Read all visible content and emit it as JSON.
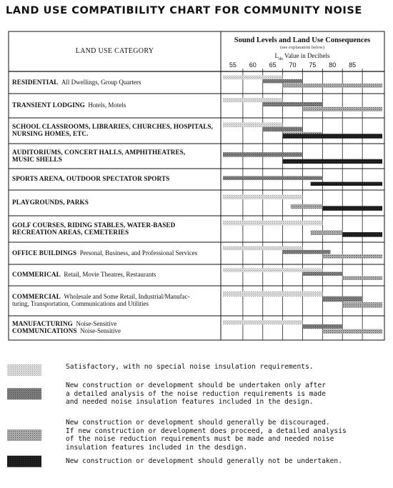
{
  "title": "LAND USE COMPATIBILITY CHART FOR COMMUNITY NOISE",
  "header": {
    "category_label": "LAND USE CATEGORY",
    "sound_title": "Sound Levels and Land Use Consequences",
    "sound_note": "(see explanation below)",
    "ldn_main": "L",
    "ldn_sub": "dn",
    "ldn_rest": " Value in Decibels"
  },
  "chart_data": {
    "type": "table",
    "x_unit": "Ldn Value in Decibels",
    "xlim": [
      50,
      90
    ],
    "ticks": [
      55,
      60,
      65,
      70,
      75,
      80,
      85
    ],
    "zones": [
      {
        "key": "satisfactory",
        "color": "#d6d6d6"
      },
      {
        "key": "analysis",
        "color": "#777777"
      },
      {
        "key": "discouraged",
        "color": "#a8a8a8"
      },
      {
        "key": "not_undertaken",
        "color": "#1c1c1c"
      }
    ],
    "rows": [
      {
        "name": "RESIDENTIAL",
        "desc": "All Dwellings, Group Quarters",
        "bands": [
          {
            "zone": "satisfactory",
            "from": 50,
            "to": 65
          },
          {
            "zone": "analysis",
            "from": 60,
            "to": 70
          },
          {
            "zone": "discouraged",
            "from": 65,
            "to": 90
          }
        ]
      },
      {
        "name": "TRANSIENT LODGING",
        "desc": "Hotels, Motels",
        "bands": [
          {
            "zone": "satisfactory",
            "from": 50,
            "to": 65
          },
          {
            "zone": "analysis",
            "from": 60,
            "to": 75
          },
          {
            "zone": "discouraged",
            "from": 70,
            "to": 80
          },
          {
            "zone": "discouraged",
            "from": 75,
            "to": 90
          }
        ]
      },
      {
        "name": "SCHOOL CLASSROOMS, LIBRARIES, CHURCHES, HOSPITALS, NURSING HOMES, ETC.",
        "desc": "",
        "bands": [
          {
            "zone": "satisfactory",
            "from": 50,
            "to": 65
          },
          {
            "zone": "analysis",
            "from": 60,
            "to": 70
          },
          {
            "zone": "discouraged",
            "from": 65,
            "to": 75
          },
          {
            "zone": "not_undertaken",
            "from": 65,
            "to": 90
          }
        ]
      },
      {
        "name": "AUDITORIUMS, CONCERT HALLS, AMPHITHEATRES, MUSIC SHELLS",
        "desc": "",
        "bands": [
          {
            "zone": "analysis",
            "from": 50,
            "to": 70
          },
          {
            "zone": "not_undertaken",
            "from": 65,
            "to": 90
          }
        ]
      },
      {
        "name": "SPORTS ARENA, OUTDOOR SPECTATOR SPORTS",
        "desc": "",
        "bands": [
          {
            "zone": "analysis",
            "from": 50,
            "to": 75
          },
          {
            "zone": "not_undertaken",
            "from": 72,
            "to": 90
          }
        ]
      },
      {
        "name": "PLAYGROUNDS, PARKS",
        "desc": "",
        "bands": [
          {
            "zone": "satisfactory",
            "from": 50,
            "to": 70
          },
          {
            "zone": "discouraged",
            "from": 67,
            "to": 75
          },
          {
            "zone": "not_undertaken",
            "from": 75,
            "to": 90
          }
        ]
      },
      {
        "name": "GOLF COURSES, RIDING STABLES, WATER-BASED RECREATION AREAS, CEMETERIES",
        "desc": "",
        "bands": [
          {
            "zone": "satisfactory",
            "from": 50,
            "to": 75
          },
          {
            "zone": "discouraged",
            "from": 72,
            "to": 80
          },
          {
            "zone": "not_undertaken",
            "from": 80,
            "to": 90
          }
        ]
      },
      {
        "name": "OFFICE BUILDINGS",
        "desc": "Personal, Business, and Professional Services",
        "bands": [
          {
            "zone": "satisfactory",
            "from": 50,
            "to": 70
          },
          {
            "zone": "analysis",
            "from": 65,
            "to": 77
          },
          {
            "zone": "discouraged",
            "from": 75,
            "to": 90
          }
        ]
      },
      {
        "name": "COMMERICAL",
        "desc": "Retail, Movie Theatres, Restaurants",
        "bands": [
          {
            "zone": "satisfactory",
            "from": 50,
            "to": 75
          },
          {
            "zone": "analysis",
            "from": 70,
            "to": 80
          },
          {
            "zone": "discouraged",
            "from": 80,
            "to": 90
          }
        ]
      },
      {
        "name": "COMMERCIAL",
        "desc": "Wholesale and Some Retail, Industrial/Manufacturing, Transportation, Communications and Utilities",
        "bands": [
          {
            "zone": "satisfactory",
            "from": 50,
            "to": 75
          },
          {
            "zone": "analysis",
            "from": 75,
            "to": 85
          },
          {
            "zone": "discouraged",
            "from": 80,
            "to": 90
          }
        ]
      },
      {
        "name": "MANUFACTURING COMMUNICATIONS",
        "desc": "Noise-Sensitive",
        "bands": [
          {
            "zone": "satisfactory",
            "from": 50,
            "to": 70
          },
          {
            "zone": "analysis",
            "from": 70,
            "to": 80
          },
          {
            "zone": "discouraged",
            "from": 75,
            "to": 90
          }
        ]
      }
    ]
  },
  "row_labels": [
    {
      "lines": [
        {
          "b": "RESIDENTIAL",
          "s": "All Dwellings, Group Quarters"
        }
      ]
    },
    {
      "lines": [
        {
          "b": "TRANSIENT LODGING",
          "s": "Hotels, Motels"
        }
      ]
    },
    {
      "lines": [
        {
          "b": "SCHOOL CLASSROOMS, LIBRARIES, CHURCHES, HOSPITALS,",
          "s": ""
        },
        {
          "b": "NURSING HOMES, ETC.",
          "s": ""
        }
      ]
    },
    {
      "lines": [
        {
          "b": "AUDITORIUMS, CONCERT HALLS, AMPHITHEATRES,",
          "s": ""
        },
        {
          "b": "MUSIC SHELLS",
          "s": ""
        }
      ]
    },
    {
      "lines": [
        {
          "b": "SPORTS ARENA, OUTDOOR SPECTATOR SPORTS",
          "s": ""
        }
      ]
    },
    {
      "lines": [
        {
          "b": "PLAYGROUNDS, PARKS",
          "s": ""
        }
      ]
    },
    {
      "lines": [
        {
          "b": "GOLF COURSES, RIDING STABLES, WATER-BASED",
          "s": ""
        },
        {
          "b": "RECREATION AREAS, CEMETERIES",
          "s": ""
        }
      ]
    },
    {
      "lines": [
        {
          "b": "OFFICE BUILDINGS",
          "s": "Personal, Business, and Professional Services"
        }
      ]
    },
    {
      "lines": [
        {
          "b": "COMMERICAL",
          "s": "Retail, Movie Theatres, Restaurants"
        }
      ]
    },
    {
      "lines": [
        {
          "b": "COMMERCIAL",
          "s": "Wholesale and Some Retail, Industrial/Manufac-"
        },
        {
          "b": "",
          "s": "turing, Transportation, Communications and Utilities"
        }
      ]
    },
    {
      "lines": [
        {
          "b": "MANUFACTURING",
          "s": "Noise-Sensitive"
        },
        {
          "b": "COMMUNICATIONS",
          "s": "Noise-Sensitive"
        }
      ]
    }
  ],
  "legend": [
    {
      "zone": "satisfactory",
      "lines": [
        "Satisfactory, with no special noise insulation requirements."
      ]
    },
    {
      "zone": "analysis",
      "lines": [
        "New construction or development should be undertaken only after",
        "a detailed analysis of the noise reduction requirements is made",
        "and needed noise insulation features included in the design."
      ]
    },
    {
      "zone": "discouraged",
      "lines": [
        "New construction or development should generally be discouraged.",
        "If new construction or development does proceed, a detailed analysis",
        "of the noise reduction requirements must be made and needed noise",
        "insulation features included in the desdign."
      ]
    },
    {
      "zone": "not_undertaken",
      "lines": [
        "New construction or development should generally not be undertaken."
      ]
    }
  ]
}
